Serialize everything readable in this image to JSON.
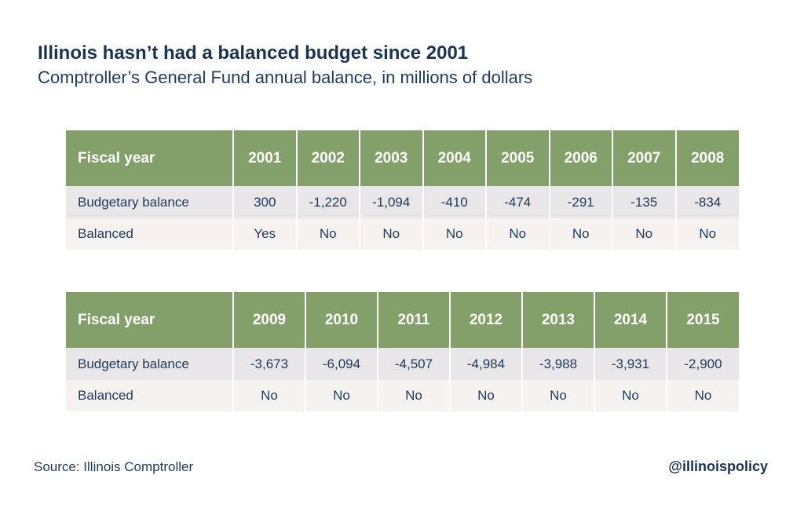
{
  "title": "Illinois hasn’t had a balanced budget since 2001",
  "subtitle": "Comptroller’s General Fund annual balance, in millions of dollars",
  "source": "Source: Illinois Comptroller",
  "handle": "@illinoispolicy",
  "colors": {
    "header": "#84a06a",
    "row_odd": "#e8e6e8",
    "row_even": "#f5f2f0",
    "text": "#1f3a5a"
  },
  "chart_data": {
    "type": "table",
    "tables": [
      {
        "header": "Fiscal year",
        "row_labels": [
          "Budgetary balance",
          "Balanced"
        ],
        "years": [
          "2001",
          "2002",
          "2003",
          "2004",
          "2005",
          "2006",
          "2007",
          "2008"
        ],
        "balance": [
          "300",
          "-1,220",
          "-1,094",
          "-410",
          "-474",
          "-291",
          "-135",
          "-834"
        ],
        "balanced": [
          "Yes",
          "No",
          "No",
          "No",
          "No",
          "No",
          "No",
          "No"
        ]
      },
      {
        "header": "Fiscal year",
        "row_labels": [
          "Budgetary balance",
          "Balanced"
        ],
        "years": [
          "2009",
          "2010",
          "2011",
          "2012",
          "2013",
          "2014",
          "2015"
        ],
        "balance": [
          "-3,673",
          "-6,094",
          "-4,507",
          "-4,984",
          "-3,988",
          "-3,931",
          "-2,900"
        ],
        "balanced": [
          "No",
          "No",
          "No",
          "No",
          "No",
          "No",
          "No"
        ]
      }
    ]
  }
}
